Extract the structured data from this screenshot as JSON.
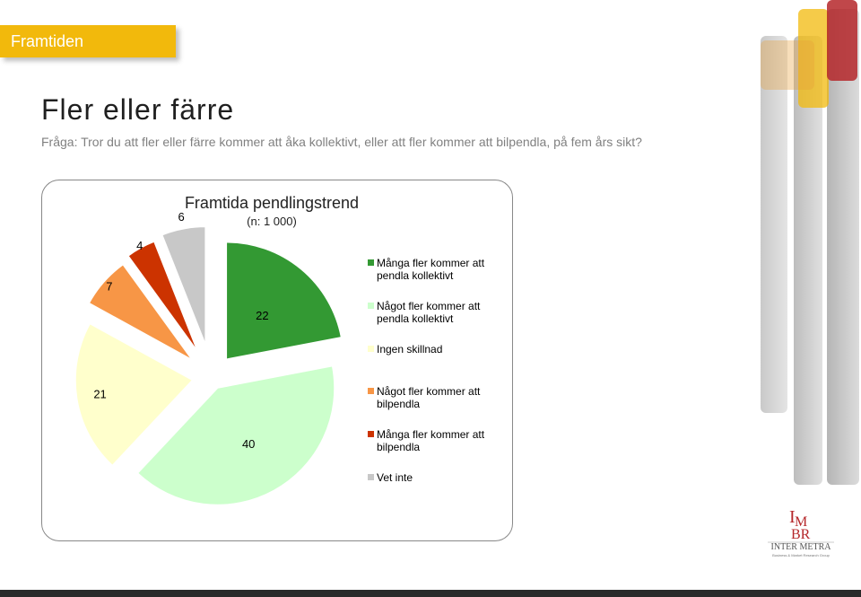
{
  "section_tag": "Framtiden",
  "title": "Fler eller färre",
  "subtitle": "Fråga: Tror du att fler eller färre kommer att åka kollektivt, eller att fler kommer att bilpendla, på fem års sikt?",
  "chart_data": {
    "type": "pie",
    "title": "Framtida pendlingstrend",
    "subtitle": "(n: 1 000)",
    "exploded": true,
    "legend_position": "right",
    "slices": [
      {
        "label": "Många fler kommer att pendla kollektivt",
        "value": 22,
        "color": "#339933"
      },
      {
        "label": "Något fler kommer att pendla kollektivt",
        "value": 40,
        "color": "#ccffcc"
      },
      {
        "label": "Ingen skillnad",
        "value": 21,
        "color": "#ffffcc"
      },
      {
        "label": "Något fler kommer att bilpendla",
        "value": 7,
        "color": "#f79646"
      },
      {
        "label": "Många fler kommer att bilpendla",
        "value": 4,
        "color": "#cc3300"
      },
      {
        "label": "Vet inte",
        "value": 6,
        "color": "#c8c8c8"
      }
    ]
  },
  "logo": {
    "brand": "INTER METRA",
    "tagline": "Business & Market Research Group"
  },
  "decor_colors": {
    "accent_yellow": "#f2b90c",
    "accent_red": "#b5272a",
    "accent_orange": "#e8a13a"
  }
}
